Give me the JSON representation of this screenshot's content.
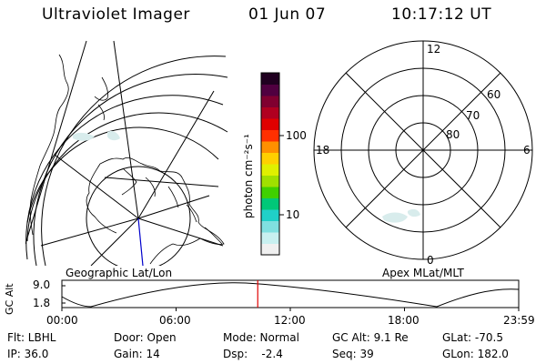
{
  "header": {
    "title": "Ultraviolet Imager",
    "date": "01 Jun 07",
    "time": "10:17:12 UT"
  },
  "left_panel": {
    "label": "Geographic Lat/Lon"
  },
  "right_panel": {
    "label": "Apex  MLat/MLT",
    "mlt_labels": {
      "top": "12",
      "left": "18",
      "right": "6",
      "bottom": "0"
    },
    "lat_labels": [
      "60",
      "70",
      "80"
    ]
  },
  "colorbar": {
    "unit": "photon cm⁻²s⁻¹",
    "ticks": [
      {
        "label": "100",
        "value": 100
      },
      {
        "label": "10",
        "value": 10
      }
    ],
    "colors": [
      "#f0f0f0",
      "#c8f0f0",
      "#80e0e0",
      "#20d0c8",
      "#00c878",
      "#40d000",
      "#a0e000",
      "#e0f000",
      "#ffd000",
      "#ff9000",
      "#ff3000",
      "#e00000",
      "#b00020",
      "#800030",
      "#500040",
      "#200020"
    ]
  },
  "altitude_plot": {
    "ylabel": "GC Alt",
    "yticks": [
      "9.0",
      "1.8"
    ],
    "xticks": [
      "00:00",
      "06:00",
      "12:00",
      "18:00",
      "23:59"
    ],
    "marker_hour": 10.29
  },
  "info": {
    "row1": [
      "Flt: LBHL",
      "Door: Open",
      "Mode: Normal",
      "GC Alt: 9.1 Re",
      "GLat: -70.5"
    ],
    "row2": [
      "IP: 36.0",
      "Gain: 14",
      "Dsp:    -2.4",
      "Seq: 39",
      "GLon: 182.0"
    ]
  }
}
